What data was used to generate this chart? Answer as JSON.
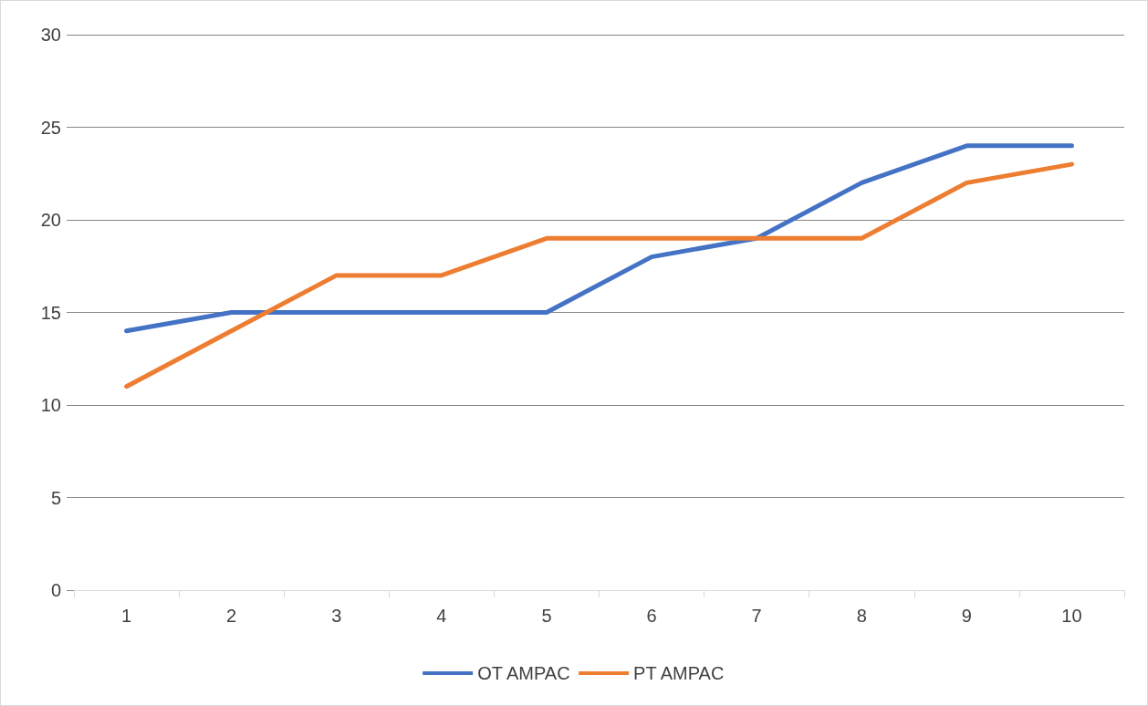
{
  "chart_data": {
    "type": "line",
    "categories": [
      "1",
      "2",
      "3",
      "4",
      "5",
      "6",
      "7",
      "8",
      "9",
      "10"
    ],
    "series": [
      {
        "name": "OT AMPAC",
        "color": "#4472c4",
        "values": [
          14,
          15,
          15,
          15,
          15,
          18,
          19,
          22,
          24,
          24
        ]
      },
      {
        "name": "PT AMPAC",
        "color": "#ed7d31",
        "values": [
          11,
          14,
          17,
          17,
          19,
          19,
          19,
          19,
          22,
          23
        ]
      }
    ],
    "ylim": [
      0,
      30
    ],
    "yticks": [
      0,
      5,
      10,
      15,
      20,
      25,
      30
    ],
    "grid": "y",
    "legend": "bottom",
    "marker": "none",
    "line_style": "solid"
  }
}
